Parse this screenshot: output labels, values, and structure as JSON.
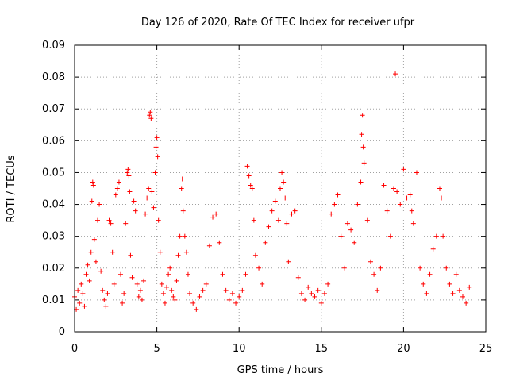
{
  "chart_data": {
    "type": "scatter",
    "title": "Day 126 of 2020, Rate Of TEC Index for receiver ufpr",
    "xlabel": "GPS time / hours",
    "ylabel": "ROTI / TECUs",
    "xlim": [
      0,
      25
    ],
    "ylim": [
      0,
      0.09
    ],
    "x_ticks": [
      0,
      5,
      10,
      15,
      20,
      25
    ],
    "x_tick_labels": [
      "0",
      "5",
      "10",
      "15",
      "20",
      "25"
    ],
    "y_ticks": [
      0,
      0.01,
      0.02,
      0.03,
      0.04,
      0.05,
      0.06,
      0.07,
      0.08,
      0.09
    ],
    "y_tick_labels": [
      "0",
      "0.01",
      "0.02",
      "0.03",
      "0.04",
      "0.05",
      "0.06",
      "0.07",
      "0.08",
      "0.09"
    ],
    "grid": true,
    "marker": "+",
    "series_color": "#ff0000",
    "x_range": [
      0,
      24
    ],
    "series": [
      {
        "points": [
          [
            0.0,
            0.011
          ],
          [
            0.1,
            0.007
          ],
          [
            0.2,
            0.013
          ],
          [
            0.3,
            0.009
          ],
          [
            0.4,
            0.015
          ],
          [
            0.5,
            0.012
          ],
          [
            0.6,
            0.008
          ],
          [
            0.7,
            0.018
          ],
          [
            0.8,
            0.021
          ],
          [
            0.9,
            0.016
          ],
          [
            1.0,
            0.025
          ],
          [
            1.05,
            0.041
          ],
          [
            1.1,
            0.047
          ],
          [
            1.15,
            0.046
          ],
          [
            1.2,
            0.029
          ],
          [
            1.3,
            0.022
          ],
          [
            1.4,
            0.035
          ],
          [
            1.5,
            0.04
          ],
          [
            1.6,
            0.019
          ],
          [
            1.7,
            0.013
          ],
          [
            1.8,
            0.01
          ],
          [
            1.9,
            0.008
          ],
          [
            2.0,
            0.012
          ],
          [
            2.1,
            0.035
          ],
          [
            2.2,
            0.034
          ],
          [
            2.3,
            0.025
          ],
          [
            2.4,
            0.015
          ],
          [
            2.5,
            0.043
          ],
          [
            2.6,
            0.045
          ],
          [
            2.7,
            0.047
          ],
          [
            2.8,
            0.018
          ],
          [
            2.9,
            0.009
          ],
          [
            3.0,
            0.012
          ],
          [
            3.1,
            0.034
          ],
          [
            3.2,
            0.05
          ],
          [
            3.25,
            0.051
          ],
          [
            3.3,
            0.049
          ],
          [
            3.35,
            0.044
          ],
          [
            3.4,
            0.024
          ],
          [
            3.5,
            0.017
          ],
          [
            3.6,
            0.041
          ],
          [
            3.7,
            0.038
          ],
          [
            3.8,
            0.015
          ],
          [
            3.9,
            0.011
          ],
          [
            4.0,
            0.013
          ],
          [
            4.1,
            0.01
          ],
          [
            4.2,
            0.016
          ],
          [
            4.3,
            0.037
          ],
          [
            4.4,
            0.042
          ],
          [
            4.5,
            0.045
          ],
          [
            4.55,
            0.068
          ],
          [
            4.6,
            0.069
          ],
          [
            4.65,
            0.067
          ],
          [
            4.7,
            0.044
          ],
          [
            4.8,
            0.039
          ],
          [
            4.9,
            0.05
          ],
          [
            4.95,
            0.058
          ],
          [
            5.0,
            0.061
          ],
          [
            5.05,
            0.055
          ],
          [
            5.1,
            0.035
          ],
          [
            5.2,
            0.025
          ],
          [
            5.3,
            0.015
          ],
          [
            5.4,
            0.012
          ],
          [
            5.5,
            0.009
          ],
          [
            5.6,
            0.014
          ],
          [
            5.7,
            0.018
          ],
          [
            5.8,
            0.02
          ],
          [
            5.9,
            0.013
          ],
          [
            6.0,
            0.011
          ],
          [
            6.1,
            0.01
          ],
          [
            6.2,
            0.016
          ],
          [
            6.3,
            0.024
          ],
          [
            6.4,
            0.03
          ],
          [
            6.5,
            0.045
          ],
          [
            6.55,
            0.048
          ],
          [
            6.6,
            0.038
          ],
          [
            6.7,
            0.03
          ],
          [
            6.8,
            0.025
          ],
          [
            6.9,
            0.018
          ],
          [
            7.0,
            0.012
          ],
          [
            7.2,
            0.009
          ],
          [
            7.4,
            0.007
          ],
          [
            7.6,
            0.011
          ],
          [
            7.8,
            0.013
          ],
          [
            8.0,
            0.015
          ],
          [
            8.2,
            0.027
          ],
          [
            8.4,
            0.036
          ],
          [
            8.6,
            0.037
          ],
          [
            8.8,
            0.028
          ],
          [
            9.0,
            0.018
          ],
          [
            9.2,
            0.013
          ],
          [
            9.4,
            0.01
          ],
          [
            9.6,
            0.012
          ],
          [
            9.8,
            0.009
          ],
          [
            10.0,
            0.011
          ],
          [
            10.2,
            0.013
          ],
          [
            10.4,
            0.018
          ],
          [
            10.5,
            0.052
          ],
          [
            10.6,
            0.049
          ],
          [
            10.7,
            0.046
          ],
          [
            10.8,
            0.045
          ],
          [
            10.9,
            0.035
          ],
          [
            11.0,
            0.024
          ],
          [
            11.2,
            0.02
          ],
          [
            11.4,
            0.015
          ],
          [
            11.6,
            0.028
          ],
          [
            11.8,
            0.033
          ],
          [
            12.0,
            0.038
          ],
          [
            12.2,
            0.041
          ],
          [
            12.4,
            0.035
          ],
          [
            12.5,
            0.045
          ],
          [
            12.6,
            0.05
          ],
          [
            12.7,
            0.047
          ],
          [
            12.8,
            0.042
          ],
          [
            12.9,
            0.034
          ],
          [
            13.0,
            0.022
          ],
          [
            13.2,
            0.037
          ],
          [
            13.4,
            0.038
          ],
          [
            13.6,
            0.017
          ],
          [
            13.8,
            0.012
          ],
          [
            14.0,
            0.01
          ],
          [
            14.2,
            0.014
          ],
          [
            14.4,
            0.012
          ],
          [
            14.6,
            0.011
          ],
          [
            14.8,
            0.013
          ],
          [
            15.0,
            0.009
          ],
          [
            15.2,
            0.012
          ],
          [
            15.4,
            0.015
          ],
          [
            15.6,
            0.037
          ],
          [
            15.8,
            0.04
          ],
          [
            16.0,
            0.043
          ],
          [
            16.2,
            0.03
          ],
          [
            16.4,
            0.02
          ],
          [
            16.6,
            0.034
          ],
          [
            16.8,
            0.032
          ],
          [
            17.0,
            0.028
          ],
          [
            17.2,
            0.04
          ],
          [
            17.4,
            0.047
          ],
          [
            17.45,
            0.062
          ],
          [
            17.5,
            0.068
          ],
          [
            17.55,
            0.058
          ],
          [
            17.6,
            0.053
          ],
          [
            17.8,
            0.035
          ],
          [
            18.0,
            0.022
          ],
          [
            18.2,
            0.018
          ],
          [
            18.4,
            0.013
          ],
          [
            18.6,
            0.02
          ],
          [
            18.8,
            0.046
          ],
          [
            19.0,
            0.038
          ],
          [
            19.2,
            0.03
          ],
          [
            19.4,
            0.045
          ],
          [
            19.5,
            0.081
          ],
          [
            19.6,
            0.044
          ],
          [
            19.8,
            0.04
          ],
          [
            20.0,
            0.051
          ],
          [
            20.2,
            0.042
          ],
          [
            20.4,
            0.043
          ],
          [
            20.5,
            0.038
          ],
          [
            20.6,
            0.034
          ],
          [
            20.8,
            0.05
          ],
          [
            21.0,
            0.02
          ],
          [
            21.2,
            0.015
          ],
          [
            21.4,
            0.012
          ],
          [
            21.6,
            0.018
          ],
          [
            21.8,
            0.026
          ],
          [
            22.0,
            0.03
          ],
          [
            22.2,
            0.045
          ],
          [
            22.3,
            0.042
          ],
          [
            22.4,
            0.03
          ],
          [
            22.6,
            0.02
          ],
          [
            22.8,
            0.015
          ],
          [
            23.0,
            0.012
          ],
          [
            23.2,
            0.018
          ],
          [
            23.4,
            0.013
          ],
          [
            23.6,
            0.011
          ],
          [
            23.8,
            0.009
          ],
          [
            24.0,
            0.014
          ]
        ]
      }
    ]
  }
}
